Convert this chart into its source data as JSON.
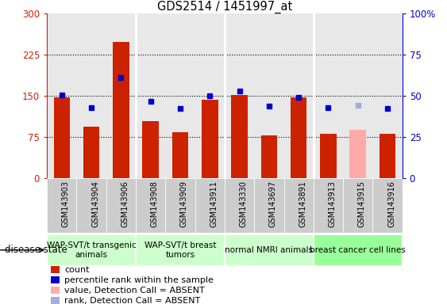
{
  "title": "GDS2514 / 1451997_at",
  "samples": [
    "GSM143903",
    "GSM143904",
    "GSM143906",
    "GSM143908",
    "GSM143909",
    "GSM143911",
    "GSM143330",
    "GSM143697",
    "GSM143891",
    "GSM143913",
    "GSM143915",
    "GSM143916"
  ],
  "counts": [
    147,
    93,
    248,
    103,
    83,
    142,
    152,
    77,
    147,
    80,
    null,
    81
  ],
  "counts_absent": [
    null,
    null,
    null,
    null,
    null,
    null,
    null,
    null,
    null,
    null,
    88,
    null
  ],
  "percentile_ranks": [
    152,
    128,
    183,
    140,
    127,
    150,
    158,
    131,
    147,
    128,
    null,
    127
  ],
  "percentile_ranks_absent": [
    null,
    null,
    null,
    null,
    null,
    null,
    null,
    null,
    null,
    null,
    133,
    null
  ],
  "groups": [
    {
      "label": "WAP-SVT/t transgenic\nanimals",
      "start": 0,
      "end": 3
    },
    {
      "label": "WAP-SVT/t breast\ntumors",
      "start": 3,
      "end": 6
    },
    {
      "label": "normal NMRI animals",
      "start": 6,
      "end": 9
    },
    {
      "label": "breast cancer cell lines",
      "start": 9,
      "end": 12
    }
  ],
  "group_colors": [
    "#ccffcc",
    "#ccffcc",
    "#ccffcc",
    "#99ff99"
  ],
  "bar_color": "#cc2200",
  "absent_bar_color": "#ffaaaa",
  "dot_color": "#0000cc",
  "absent_dot_color": "#aaaadd",
  "left_ylim": [
    0,
    300
  ],
  "left_yticks": [
    0,
    75,
    150,
    225,
    300
  ],
  "left_yticklabels": [
    "0",
    "75",
    "150",
    "225",
    "300"
  ],
  "right_yticks": [
    0,
    25,
    50,
    75,
    100
  ],
  "right_yticklabels": [
    "0",
    "25",
    "50",
    "75",
    "100%"
  ],
  "disease_state_label": "disease state",
  "legend_items": [
    {
      "color": "#cc2200",
      "label": "count"
    },
    {
      "color": "#0000cc",
      "label": "percentile rank within the sample"
    },
    {
      "color": "#ffaaaa",
      "label": "value, Detection Call = ABSENT"
    },
    {
      "color": "#aaaadd",
      "label": "rank, Detection Call = ABSENT"
    }
  ]
}
